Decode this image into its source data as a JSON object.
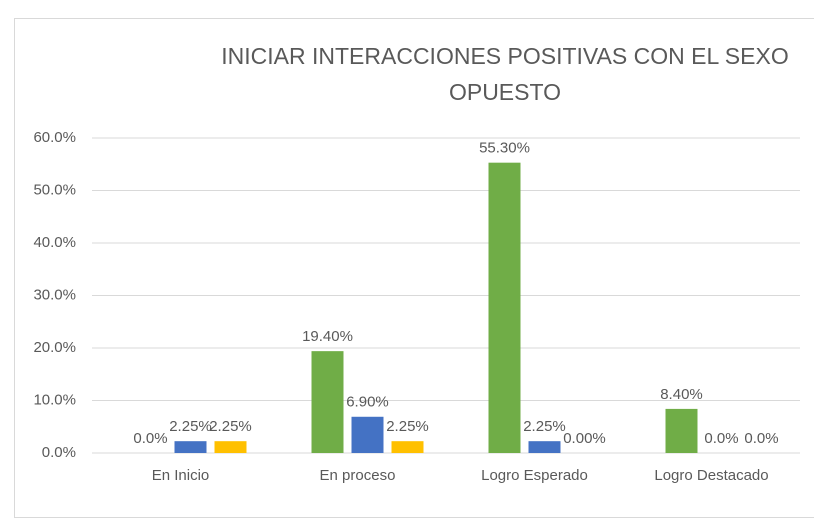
{
  "chart_data": {
    "type": "bar",
    "title": "INICIAR INTERACCIONES POSITIVAS CON EL SEXO OPUESTO",
    "categories": [
      "En Inicio",
      "En proceso",
      "Logro Esperado",
      "Logro Destacado"
    ],
    "series": [
      {
        "color": "#70ad47",
        "values": [
          0,
          19.4,
          55.3,
          8.4
        ],
        "value_labels": [
          "0.0%",
          "19.40%",
          "55.30%",
          "8.40%"
        ]
      },
      {
        "color": "#4472c4",
        "values": [
          2.25,
          6.9,
          2.25,
          0
        ],
        "value_labels": [
          "2.25%",
          "6.90%",
          "2.25%",
          "0.0%"
        ]
      },
      {
        "color": "#ffc000",
        "values": [
          2.25,
          2.25,
          0,
          0
        ],
        "value_labels": [
          "2.25%",
          "2.25%",
          "0.00%",
          "0.0%"
        ]
      }
    ],
    "ylim": [
      0,
      60
    ],
    "yticks": [
      {
        "value": 0,
        "label": "0.0%"
      },
      {
        "value": 10,
        "label": "10.0%"
      },
      {
        "value": 20,
        "label": "20.0%"
      },
      {
        "value": 30,
        "label": "30.0%"
      },
      {
        "value": 40,
        "label": "40.0%"
      },
      {
        "value": 50,
        "label": "50.0%"
      },
      {
        "value": 60,
        "label": "60.0%"
      }
    ],
    "grid": true
  }
}
